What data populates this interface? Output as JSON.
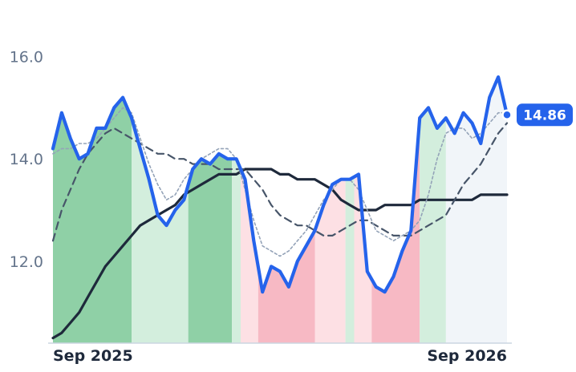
{
  "chart_data": {
    "type": "line",
    "title": "",
    "xlabel": "",
    "ylabel": "",
    "y_ticks": [
      "16.0",
      "14.0",
      "12.0"
    ],
    "y_tick_values": [
      16.0,
      14.0,
      12.0
    ],
    "ylim": [
      10.4,
      16.4
    ],
    "x_ticks": [
      {
        "label": "Sep 2025",
        "index": 0
      },
      {
        "label": "Sep 2026",
        "index": 52
      }
    ],
    "x_count": 53,
    "grid": false,
    "legend": "none",
    "last_value_label": "14.86",
    "colors": {
      "price": "#2563eb",
      "ma_short": "#94a3b8",
      "ma_mid": "#475569",
      "ma_long": "#1e293b",
      "strong_up": "#8fd0a6",
      "weak_up": "#d3eedd",
      "strong_down": "#f7b9c4",
      "weak_down": "#fde0e4",
      "neutral": "#f1f5f9",
      "axis_text": "#64748b",
      "date_text": "#1e293b"
    },
    "bands": [
      {
        "from": 0,
        "to": 9,
        "kind": "strong_up"
      },
      {
        "from": 9,
        "to": 15.5,
        "kind": "weak_up"
      },
      {
        "from": 15.5,
        "to": 20.5,
        "kind": "strong_up"
      },
      {
        "from": 20.5,
        "to": 21.5,
        "kind": "weak_up"
      },
      {
        "from": 21.5,
        "to": 23.5,
        "kind": "weak_down"
      },
      {
        "from": 23.5,
        "to": 30,
        "kind": "strong_down"
      },
      {
        "from": 30,
        "to": 33.5,
        "kind": "weak_down"
      },
      {
        "from": 33.5,
        "to": 34.5,
        "kind": "weak_up"
      },
      {
        "from": 34.5,
        "to": 36.5,
        "kind": "weak_down"
      },
      {
        "from": 36.5,
        "to": 42,
        "kind": "strong_down"
      },
      {
        "from": 42,
        "to": 45,
        "kind": "weak_up"
      },
      {
        "from": 45,
        "to": 52,
        "kind": "neutral"
      }
    ],
    "series": [
      {
        "key": "price",
        "values": [
          14.2,
          14.9,
          14.4,
          14.0,
          14.1,
          14.6,
          14.6,
          15.0,
          15.2,
          14.8,
          14.2,
          13.6,
          12.9,
          12.7,
          13.0,
          13.2,
          13.8,
          14.0,
          13.9,
          14.1,
          14.0,
          14.0,
          13.6,
          12.4,
          11.4,
          11.9,
          11.8,
          11.5,
          12.0,
          12.3,
          12.6,
          13.1,
          13.5,
          13.6,
          13.6,
          13.7,
          11.8,
          11.5,
          11.4,
          11.7,
          12.2,
          12.6,
          14.8,
          15.0,
          14.6,
          14.8,
          14.5,
          14.9,
          14.7,
          14.3,
          15.2,
          15.6,
          14.86
        ]
      },
      {
        "key": "ma_short",
        "values": [
          14.1,
          14.2,
          14.2,
          14.3,
          14.3,
          14.4,
          14.6,
          14.8,
          15.0,
          14.9,
          14.4,
          13.9,
          13.5,
          13.2,
          13.3,
          13.6,
          13.8,
          14.0,
          14.1,
          14.2,
          14.2,
          14.0,
          13.4,
          12.8,
          12.3,
          12.2,
          12.1,
          12.2,
          12.4,
          12.6,
          12.9,
          13.2,
          13.4,
          13.6,
          13.6,
          13.4,
          13.0,
          12.6,
          12.5,
          12.4,
          12.5,
          12.6,
          12.8,
          13.3,
          14.0,
          14.5,
          14.6,
          14.6,
          14.4,
          14.5,
          14.7,
          14.9,
          14.9
        ]
      },
      {
        "key": "ma_mid",
        "values": [
          12.4,
          13.0,
          13.4,
          13.8,
          14.1,
          14.3,
          14.5,
          14.6,
          14.5,
          14.4,
          14.3,
          14.2,
          14.1,
          14.1,
          14.0,
          14.0,
          13.9,
          13.9,
          13.9,
          13.8,
          13.8,
          13.8,
          13.8,
          13.6,
          13.4,
          13.1,
          12.9,
          12.8,
          12.7,
          12.7,
          12.6,
          12.5,
          12.5,
          12.6,
          12.7,
          12.8,
          12.8,
          12.7,
          12.6,
          12.5,
          12.5,
          12.5,
          12.6,
          12.7,
          12.8,
          12.9,
          13.2,
          13.5,
          13.7,
          13.9,
          14.2,
          14.5,
          14.7
        ]
      },
      {
        "key": "ma_long",
        "values": [
          10.5,
          10.6,
          10.8,
          11.0,
          11.3,
          11.6,
          11.9,
          12.1,
          12.3,
          12.5,
          12.7,
          12.8,
          12.9,
          13.0,
          13.1,
          13.3,
          13.4,
          13.5,
          13.6,
          13.7,
          13.7,
          13.7,
          13.8,
          13.8,
          13.8,
          13.8,
          13.7,
          13.7,
          13.6,
          13.6,
          13.6,
          13.5,
          13.4,
          13.2,
          13.1,
          13.0,
          13.0,
          13.0,
          13.1,
          13.1,
          13.1,
          13.1,
          13.2,
          13.2,
          13.2,
          13.2,
          13.2,
          13.2,
          13.2,
          13.3,
          13.3,
          13.3,
          13.3
        ]
      }
    ]
  }
}
